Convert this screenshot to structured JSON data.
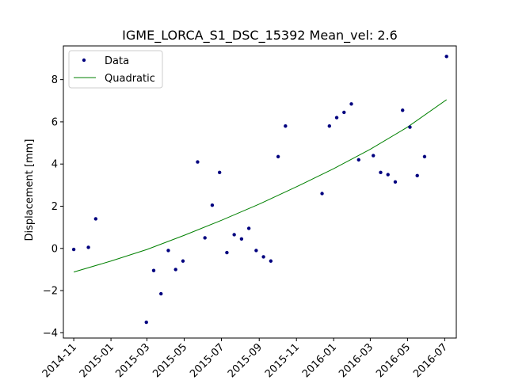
{
  "chart_data": {
    "type": "scatter",
    "title": "IGME_LORCA_S1_DSC_15392    Mean_vel: 2.6",
    "xlabel": "",
    "ylabel": "Displacement [mm]",
    "xlim": [
      "2014-10-15",
      "2016-07-20"
    ],
    "ylim": [
      -4.25,
      9.6
    ],
    "x_ticks": [
      "2014-11",
      "2015-01",
      "2015-03",
      "2015-05",
      "2015-07",
      "2015-09",
      "2015-11",
      "2016-01",
      "2016-03",
      "2016-05",
      "2016-07"
    ],
    "y_ticks": [
      -4,
      -2,
      0,
      2,
      4,
      6,
      8
    ],
    "y_tick_labels": [
      "−4",
      "−2",
      "0",
      "2",
      "4",
      "6",
      "8"
    ],
    "grid": false,
    "legend_position": "top-left",
    "colors": {
      "data": "#00007f",
      "quadratic": "#008000",
      "axes": "#000000"
    },
    "series": [
      {
        "name": "Data",
        "kind": "points",
        "points": [
          [
            "2014-11-01",
            -0.05
          ],
          [
            "2014-11-25",
            0.05
          ],
          [
            "2014-12-07",
            1.4
          ],
          [
            "2015-02-28",
            -3.5
          ],
          [
            "2015-03-12",
            -1.05
          ],
          [
            "2015-03-24",
            -2.15
          ],
          [
            "2015-04-05",
            -0.1
          ],
          [
            "2015-04-17",
            -1.0
          ],
          [
            "2015-04-29",
            -0.6
          ],
          [
            "2015-05-23",
            4.1
          ],
          [
            "2015-06-04",
            0.5
          ],
          [
            "2015-06-16",
            2.05
          ],
          [
            "2015-06-28",
            3.6
          ],
          [
            "2015-07-10",
            -0.2
          ],
          [
            "2015-07-22",
            0.65
          ],
          [
            "2015-08-03",
            0.45
          ],
          [
            "2015-08-15",
            0.95
          ],
          [
            "2015-08-27",
            -0.1
          ],
          [
            "2015-09-08",
            -0.4
          ],
          [
            "2015-09-20",
            -0.6
          ],
          [
            "2015-10-02",
            4.35
          ],
          [
            "2015-10-14",
            5.8
          ],
          [
            "2015-12-13",
            2.6
          ],
          [
            "2015-12-25",
            5.8
          ],
          [
            "2016-01-06",
            6.2
          ],
          [
            "2016-01-18",
            6.45
          ],
          [
            "2016-01-30",
            6.85
          ],
          [
            "2016-02-11",
            4.2
          ],
          [
            "2016-03-06",
            4.4
          ],
          [
            "2016-03-18",
            3.6
          ],
          [
            "2016-03-30",
            3.5
          ],
          [
            "2016-04-11",
            3.15
          ],
          [
            "2016-04-23",
            6.55
          ],
          [
            "2016-05-05",
            5.75
          ],
          [
            "2016-05-17",
            3.45
          ],
          [
            "2016-05-29",
            4.35
          ],
          [
            "2016-07-04",
            9.1
          ]
        ]
      },
      {
        "name": "Quadratic",
        "kind": "line",
        "points": [
          [
            "2014-11-01",
            -1.12
          ],
          [
            "2015-01-01",
            -0.6
          ],
          [
            "2015-03-01",
            -0.05
          ],
          [
            "2015-05-01",
            0.62
          ],
          [
            "2015-07-01",
            1.33
          ],
          [
            "2015-09-01",
            2.1
          ],
          [
            "2015-11-01",
            2.92
          ],
          [
            "2016-01-01",
            3.78
          ],
          [
            "2016-03-01",
            4.7
          ],
          [
            "2016-05-01",
            5.75
          ],
          [
            "2016-07-04",
            7.05
          ]
        ]
      }
    ]
  }
}
